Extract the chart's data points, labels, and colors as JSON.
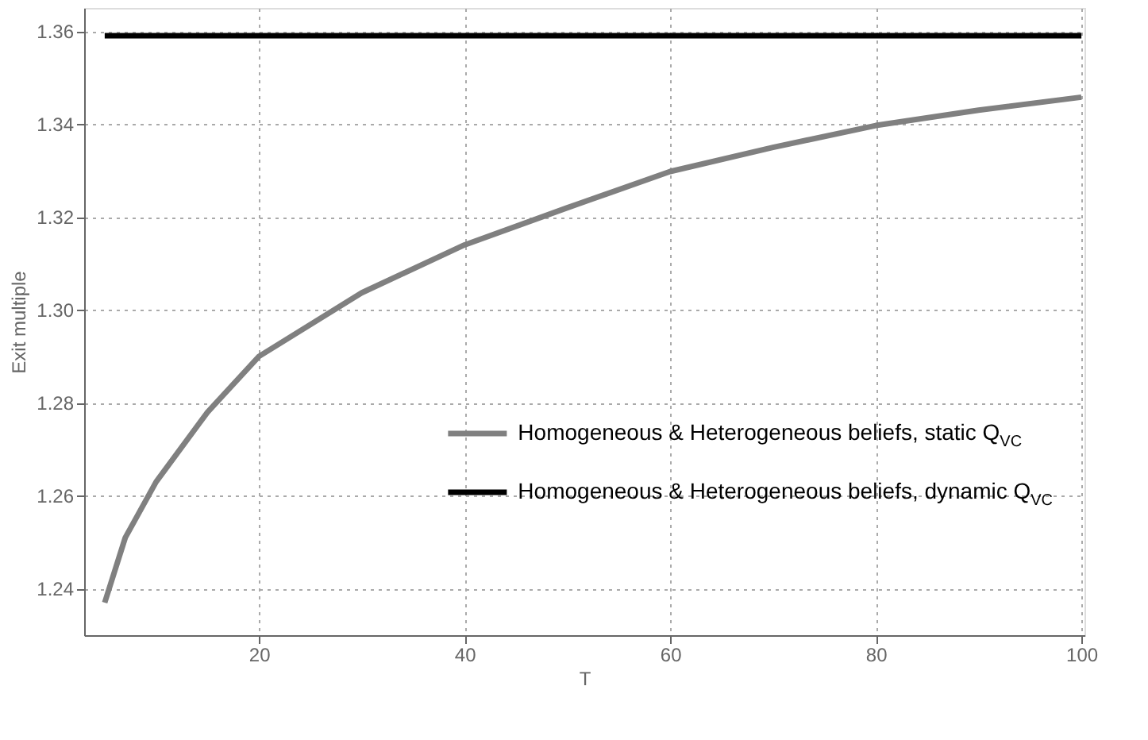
{
  "chart_data": {
    "type": "line",
    "xlabel": "T",
    "ylabel": "Exit multiple",
    "xlim": [
      3,
      100.3
    ],
    "ylim": [
      1.23,
      1.365
    ],
    "xticks": [
      20,
      40,
      60,
      80,
      100
    ],
    "yticks": [
      1.24,
      1.26,
      1.28,
      {
        "value": 1.3,
        "label": "1.30"
      },
      1.32,
      1.34,
      1.36
    ],
    "grid": true,
    "legend": "bottom right",
    "line_style": "solid",
    "marker": "none",
    "series": [
      {
        "name": "Homogeneous & Heterogeneous beliefs, static Q$_{VC}$",
        "color": "#808080",
        "x": [
          5,
          7,
          10,
          15,
          20,
          30,
          40,
          50,
          60,
          70,
          80,
          90,
          100
        ],
        "values": [
          1.237,
          1.251,
          1.263,
          1.278,
          1.29,
          1.3037,
          1.314,
          1.322,
          1.3298,
          1.335,
          1.3397,
          1.343,
          1.3458
        ]
      },
      {
        "name": "Homogeneous & Heterogeneous beliefs, dynamic Q$_{VC}$",
        "color": "#000000",
        "x": [
          5,
          100
        ],
        "values": [
          1.359,
          1.359
        ]
      }
    ]
  }
}
